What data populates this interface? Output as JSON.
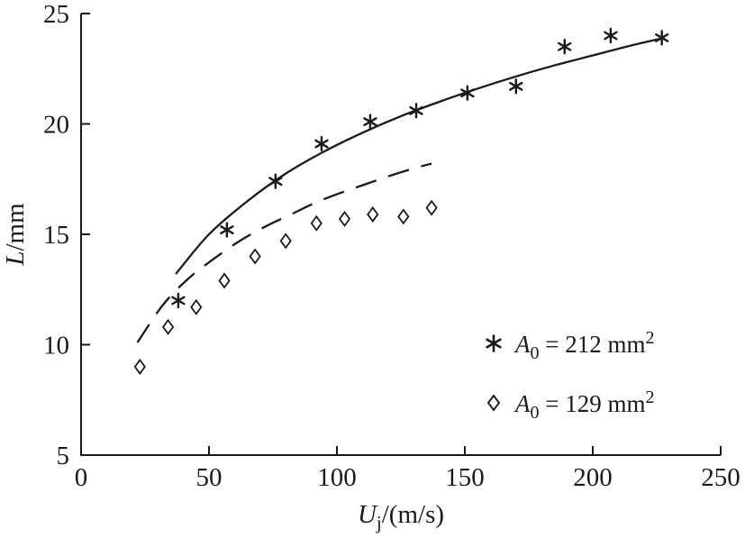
{
  "chart_data": {
    "type": "scatter",
    "title": "",
    "xlabel": {
      "var": "U",
      "sub": "j",
      "rest": "/(m/s)"
    },
    "ylabel": {
      "var": "L",
      "rest": "/mm"
    },
    "xlim": [
      0,
      250
    ],
    "ylim": [
      5,
      25
    ],
    "xticks": [
      "0",
      "50",
      "100",
      "150",
      "200",
      "250"
    ],
    "yticks": [
      "5",
      "10",
      "15",
      "20",
      "25"
    ],
    "grid": false,
    "axis_color": "#1a1a1a",
    "legend_position": "lower-right-inside",
    "series": [
      {
        "name": "A0 = 212 mm2",
        "marker": "asterisk",
        "points": [
          [
            38,
            12
          ],
          [
            57,
            15.2
          ],
          [
            76,
            17.4
          ],
          [
            94,
            19.1
          ],
          [
            113,
            20.1
          ],
          [
            131,
            20.6
          ],
          [
            151,
            21.4
          ],
          [
            170,
            21.7
          ],
          [
            189,
            23.5
          ],
          [
            207,
            24
          ],
          [
            227,
            23.9
          ]
        ],
        "fit_curve": {
          "style": "solid",
          "points": [
            [
              37,
              13.2
            ],
            [
              50,
              15.0
            ],
            [
              65,
              16.5
            ],
            [
              80,
              17.75
            ],
            [
              95,
              18.75
            ],
            [
              110,
              19.6
            ],
            [
              125,
              20.35
            ],
            [
              140,
              21.0
            ],
            [
              155,
              21.6
            ],
            [
              170,
              22.15
            ],
            [
              185,
              22.65
            ],
            [
              200,
              23.1
            ],
            [
              215,
              23.55
            ],
            [
              228,
              23.9
            ]
          ]
        }
      },
      {
        "name": "A0 = 129 mm2",
        "marker": "diamond",
        "points": [
          [
            23,
            9
          ],
          [
            34,
            10.8
          ],
          [
            45,
            11.7
          ],
          [
            56,
            12.9
          ],
          [
            68,
            14
          ],
          [
            80,
            14.7
          ],
          [
            92,
            15.5
          ],
          [
            103,
            15.7
          ],
          [
            114,
            15.9
          ],
          [
            126,
            15.8
          ],
          [
            137,
            16.2
          ]
        ],
        "fit_curve": {
          "style": "dashed",
          "points": [
            [
              22,
              10.1
            ],
            [
              32,
              11.8
            ],
            [
              42,
              13.0
            ],
            [
              52,
              13.9
            ],
            [
              62,
              14.7
            ],
            [
              72,
              15.35
            ],
            [
              82,
              15.9
            ],
            [
              92,
              16.45
            ],
            [
              102,
              16.9
            ],
            [
              112,
              17.3
            ],
            [
              122,
              17.7
            ],
            [
              132,
              18.05
            ],
            [
              137,
              18.2
            ]
          ]
        }
      }
    ],
    "legend": [
      {
        "marker": "asterisk",
        "label_var": "A",
        "label_sub": "0",
        "label_mid": " = 212 mm",
        "label_sup": "2"
      },
      {
        "marker": "diamond",
        "label_var": "A",
        "label_sub": "0",
        "label_mid": " = 129 mm",
        "label_sup": "2"
      }
    ]
  }
}
